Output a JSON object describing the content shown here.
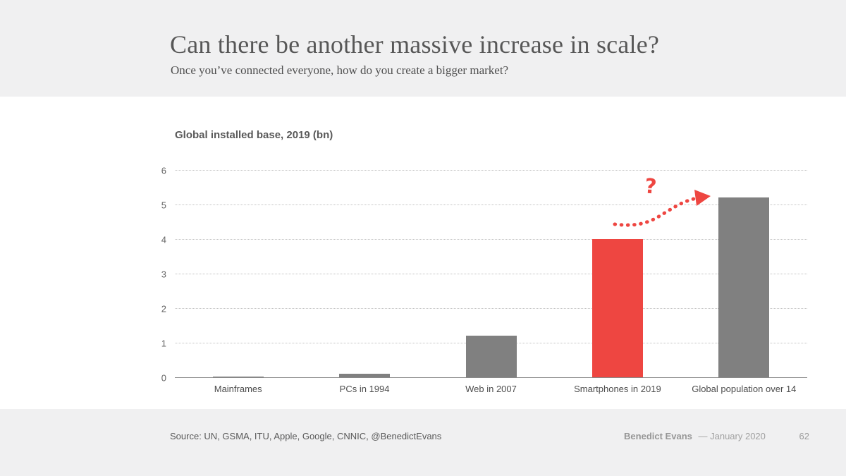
{
  "header": {
    "title": "Can there be another massive increase in scale?",
    "subtitle": "Once you’ve connected everyone, how do you create a bigger market?"
  },
  "chart": {
    "title": "Global installed base, 2019 (bn)",
    "annotation": "?"
  },
  "chart_data": {
    "type": "bar",
    "title": "Global installed base, 2019 (bn)",
    "categories": [
      "Mainframes",
      "PCs in 1994",
      "Web in 2007",
      "Smartphones in 2019",
      "Global population over 14"
    ],
    "values": [
      0.02,
      0.1,
      1.2,
      4.0,
      5.2
    ],
    "bar_colors": [
      "#808080",
      "#808080",
      "#808080",
      "#EE4641",
      "#808080"
    ],
    "default_bar_color": "#808080",
    "highlight_color": "#EE4641",
    "xlabel": "",
    "ylabel": "",
    "ylim": [
      0,
      6
    ],
    "yticks": [
      0,
      1,
      2,
      3,
      4,
      5,
      6
    ],
    "grid": "horizontal-dotted",
    "legend": "none",
    "annotation": {
      "text": "?",
      "color": "#EE4641",
      "shape": "dotted curved arrow from Smartphones bar toward Global population bar"
    }
  },
  "footer": {
    "source": "Source: UN, GSMA, ITU, Apple, Google, CNNIC, @BenedictEvans",
    "author": "Benedict Evans",
    "date": "— January 2020",
    "page": "62"
  }
}
